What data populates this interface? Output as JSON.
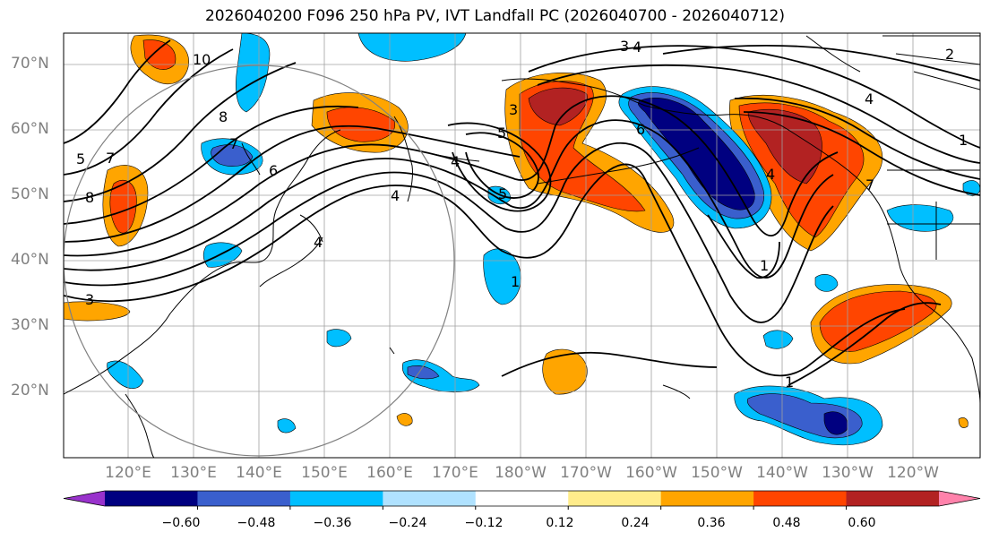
{
  "title": "2026040200 F096 250 hPa PV, IVT Landfall PC (2026040700 - 2026040712)",
  "lat_labels": [
    "70°N",
    "60°N",
    "50°N",
    "40°N",
    "30°N",
    "20°N"
  ],
  "lon_labels": [
    "120°E",
    "130°E",
    "140°E",
    "150°E",
    "160°E",
    "170°E",
    "180°W",
    "170°W",
    "160°W",
    "150°W",
    "140°W",
    "130°W",
    "120°W"
  ],
  "colorbar": {
    "extend": "both",
    "ticks": [
      "−0.60",
      "−0.48",
      "−0.36",
      "−0.24",
      "−0.12",
      "0.12",
      "0.24",
      "0.36",
      "0.48",
      "0.60"
    ],
    "colors": [
      "#9932cc",
      "#000080",
      "#3a5fcd",
      "#00bfff",
      "#b0e2ff",
      "#ffffff",
      "#ffec8b",
      "#ffa500",
      "#ff4500",
      "#b22222",
      "#ff82ab"
    ]
  },
  "contour_labels": [
    "10",
    "8",
    "7",
    "6",
    "8",
    "7",
    "5",
    "3",
    "4",
    "5",
    "4",
    "3",
    "4",
    "3",
    "4",
    "2",
    "6",
    "5",
    "4",
    "7",
    "4",
    "1",
    "1",
    "1",
    "1"
  ],
  "map": {
    "extent": {
      "lon": [
        "112°E",
        "107°W"
      ],
      "lat": [
        "10°N",
        "75°N"
      ]
    },
    "projection": "cylindrical",
    "gridlines": true,
    "circle_center": "140°E, 40°N"
  }
}
